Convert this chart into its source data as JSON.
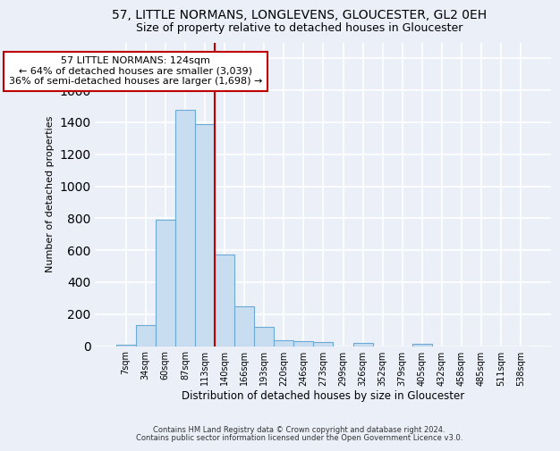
{
  "title1": "57, LITTLE NORMANS, LONGLEVENS, GLOUCESTER, GL2 0EH",
  "title2": "Size of property relative to detached houses in Gloucester",
  "xlabel": "Distribution of detached houses by size in Gloucester",
  "ylabel": "Number of detached properties",
  "footnote1": "Contains HM Land Registry data © Crown copyright and database right 2024.",
  "footnote2": "Contains public sector information licensed under the Open Government Licence v3.0.",
  "categories": [
    "7sqm",
    "34sqm",
    "60sqm",
    "87sqm",
    "113sqm",
    "140sqm",
    "166sqm",
    "193sqm",
    "220sqm",
    "246sqm",
    "273sqm",
    "299sqm",
    "326sqm",
    "352sqm",
    "379sqm",
    "405sqm",
    "432sqm",
    "458sqm",
    "485sqm",
    "511sqm",
    "538sqm"
  ],
  "values": [
    10,
    130,
    790,
    1480,
    1390,
    575,
    250,
    120,
    35,
    28,
    25,
    0,
    20,
    0,
    0,
    15,
    0,
    0,
    0,
    0,
    0
  ],
  "bar_color": "#c9ddf0",
  "bar_edgecolor": "#6aaad4",
  "bar_linewidth": 0.8,
  "vline_x": 4.5,
  "vline_color": "#c00000",
  "annotation_text": "57 LITTLE NORMANS: 124sqm\n← 64% of detached houses are smaller (3,039)\n36% of semi-detached houses are larger (1,698) →",
  "annotation_box_color": "#c00000",
  "annotation_text_color": "black",
  "annotation_fontsize": 8.0,
  "ylim": [
    0,
    1900
  ],
  "background_color": "#eaeff8",
  "grid_color": "#ffffff",
  "title1_fontsize": 10,
  "title2_fontsize": 9
}
